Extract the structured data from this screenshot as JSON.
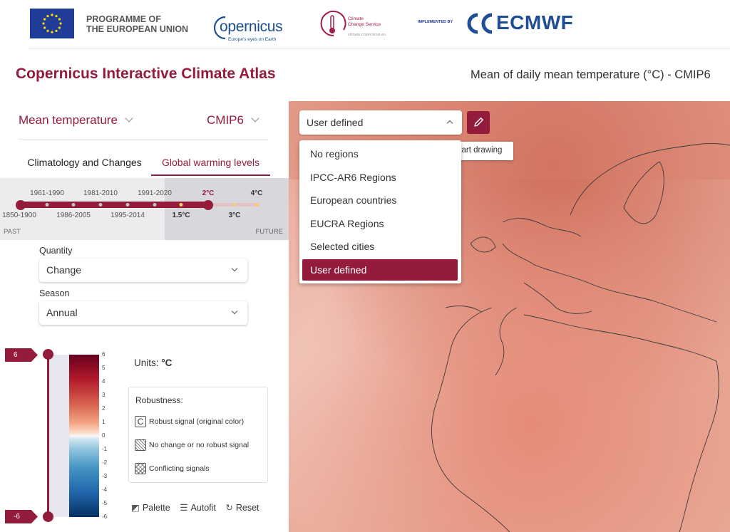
{
  "header": {
    "eu_programme": "PROGRAMME OF\nTHE EUROPEAN UNION",
    "copernicus_logo": "opernicus",
    "copernicus_tagline": "Europe's eyes on Earth",
    "c3s_name": "Climate\nChange Service",
    "c3s_url": "climate.copernicus.eu",
    "implemented_by": "IMPLEMENTED BY",
    "ecmwf": "ECMWF"
  },
  "app": {
    "title": "Copernicus Interactive Climate Atlas",
    "map_title": "Mean of daily mean temperature (°C) - CMIP6"
  },
  "sidebar": {
    "variable": "Mean temperature",
    "dataset": "CMIP6",
    "tabs": [
      {
        "label": "Climatology and Changes",
        "active": false
      },
      {
        "label": "Global warming levels",
        "active": true
      }
    ],
    "timeline": {
      "top_labels": [
        "1961-1990",
        "1981-2010",
        "1991-2020",
        "2°C",
        "4°C"
      ],
      "bottom_labels": [
        "1850-1900",
        "1986-2005",
        "1995-2014",
        "1.5°C",
        "3°C"
      ],
      "past": "PAST",
      "future": "FUTURE"
    },
    "quantity": {
      "label": "Quantity",
      "value": "Change"
    },
    "season": {
      "label": "Season",
      "value": "Annual"
    },
    "legend": {
      "max_tag": "6",
      "min_tag": "-6",
      "ticks": [
        "6",
        "5",
        "4",
        "3",
        "2",
        "1",
        "0",
        "-1",
        "-2",
        "-3",
        "-4",
        "-5",
        "-6"
      ],
      "units_label": "Units:",
      "units_value": "°C"
    },
    "robustness": {
      "title": "Robustness:",
      "items": [
        {
          "icon": "C",
          "label": "Robust signal (original color)"
        },
        {
          "icon": "",
          "label": "No change or no robust signal"
        },
        {
          "icon": "",
          "label": "Conflicting signals"
        }
      ]
    },
    "tools": {
      "palette": "Palette",
      "autofit": "Autofit",
      "reset": "Reset"
    }
  },
  "map": {
    "region_select": "User defined",
    "tooltip": "Start drawing",
    "options": [
      "No regions",
      "IPCC-AR6 Regions",
      "European countries",
      "EUCRA Regions",
      "Selected cities",
      "User defined"
    ],
    "selected_index": 5
  },
  "colors": {
    "accent": "#941b3b",
    "ecmwf_blue": "#1f4e96",
    "copernicus_blue": "#1b4f91"
  }
}
